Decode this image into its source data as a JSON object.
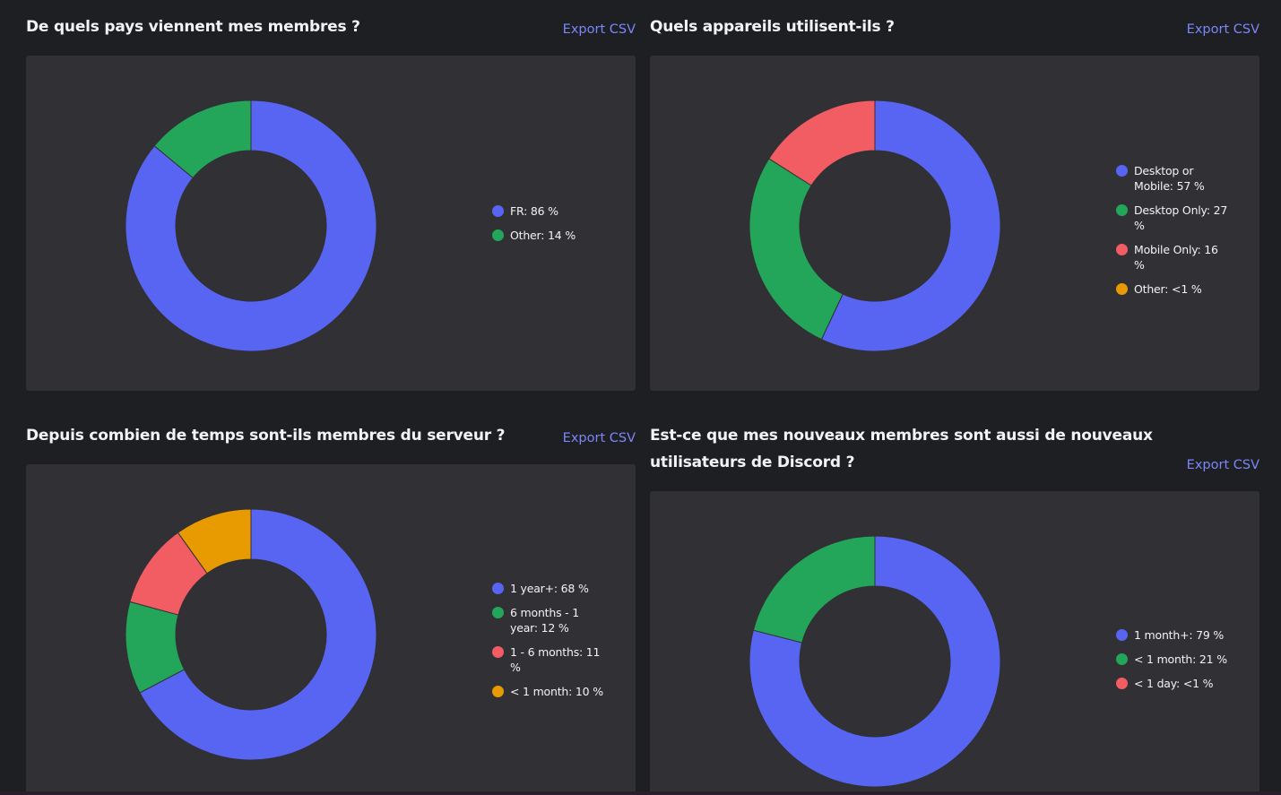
{
  "colors": {
    "blue": "#5865f2",
    "green": "#23a55a",
    "red": "#f25c63",
    "orange": "#e89b00"
  },
  "export_label": "Export CSV",
  "chart_data": [
    {
      "type": "pie",
      "title": "De quels pays viennent mes membres ?",
      "legend_position": "right",
      "series": [
        {
          "name": "FR",
          "value": 86,
          "label": "FR: 86 %",
          "color": "#5865f2"
        },
        {
          "name": "Other",
          "value": 14,
          "label": "Other: 14 %",
          "color": "#23a55a"
        }
      ]
    },
    {
      "type": "pie",
      "title": "Quels appareils utilisent-ils ?",
      "legend_position": "right",
      "series": [
        {
          "name": "Desktop or Mobile",
          "value": 57,
          "label": "Desktop or Mobile: 57 %",
          "color": "#5865f2"
        },
        {
          "name": "Desktop Only",
          "value": 27,
          "label": "Desktop Only: 27 %",
          "color": "#23a55a"
        },
        {
          "name": "Mobile Only",
          "value": 16,
          "label": "Mobile Only: 16 %",
          "color": "#f25c63"
        },
        {
          "name": "Other",
          "value": 0,
          "label": "Other: <1 %",
          "color": "#e89b00"
        }
      ]
    },
    {
      "type": "pie",
      "title": "Depuis combien de temps sont-ils membres du serveur ?",
      "legend_position": "right",
      "series": [
        {
          "name": "1 year+",
          "value": 68,
          "label": "1 year+: 68 %",
          "color": "#5865f2"
        },
        {
          "name": "6 months - 1 year",
          "value": 12,
          "label": "6 months - 1 year: 12 %",
          "color": "#23a55a"
        },
        {
          "name": "1 - 6 months",
          "value": 11,
          "label": "1 - 6 months: 11 %",
          "color": "#f25c63"
        },
        {
          "name": "< 1 month",
          "value": 10,
          "label": "< 1 month: 10 %",
          "color": "#e89b00"
        }
      ]
    },
    {
      "type": "pie",
      "title": "Est-ce que mes nouveaux membres sont aussi de nouveaux utilisateurs de Discord ?",
      "legend_position": "right",
      "series": [
        {
          "name": "1 month+",
          "value": 79,
          "label": "1 month+: 79 %",
          "color": "#5865f2"
        },
        {
          "name": "< 1 month",
          "value": 21,
          "label": "< 1 month: 21 %",
          "color": "#23a55a"
        },
        {
          "name": "< 1 day",
          "value": 0,
          "label": "< 1 day: <1 %",
          "color": "#f25c63"
        }
      ]
    }
  ]
}
